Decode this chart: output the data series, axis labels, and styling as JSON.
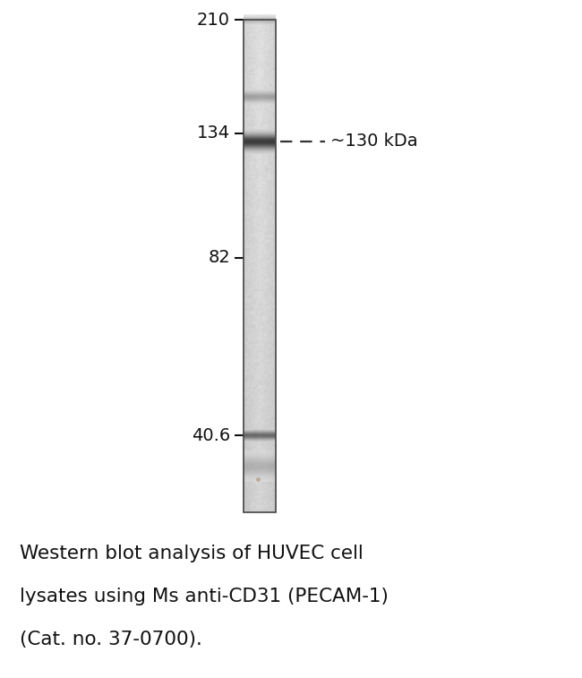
{
  "background_color": "#ffffff",
  "fig_width": 6.5,
  "fig_height": 7.57,
  "dpi": 100,
  "mw_markers": [
    {
      "label": "210",
      "mw": 210
    },
    {
      "label": "134",
      "mw": 134
    },
    {
      "label": "82",
      "mw": 82
    },
    {
      "label": "40.6",
      "mw": 40.6
    }
  ],
  "band_130_label": "~130 kDa",
  "caption_lines": [
    "Western blot analysis of HUVEC cell",
    "lysates using Ms anti-CD31 (PECAM-1)",
    "(Cat. no. 37-0700)."
  ],
  "caption_fontsize": 15.5,
  "marker_fontsize": 14,
  "annotation_fontsize": 14,
  "marker_tick_color": "#111111",
  "lane_border_color": "#444444",
  "lane_bg_color": "#d8cfc8"
}
